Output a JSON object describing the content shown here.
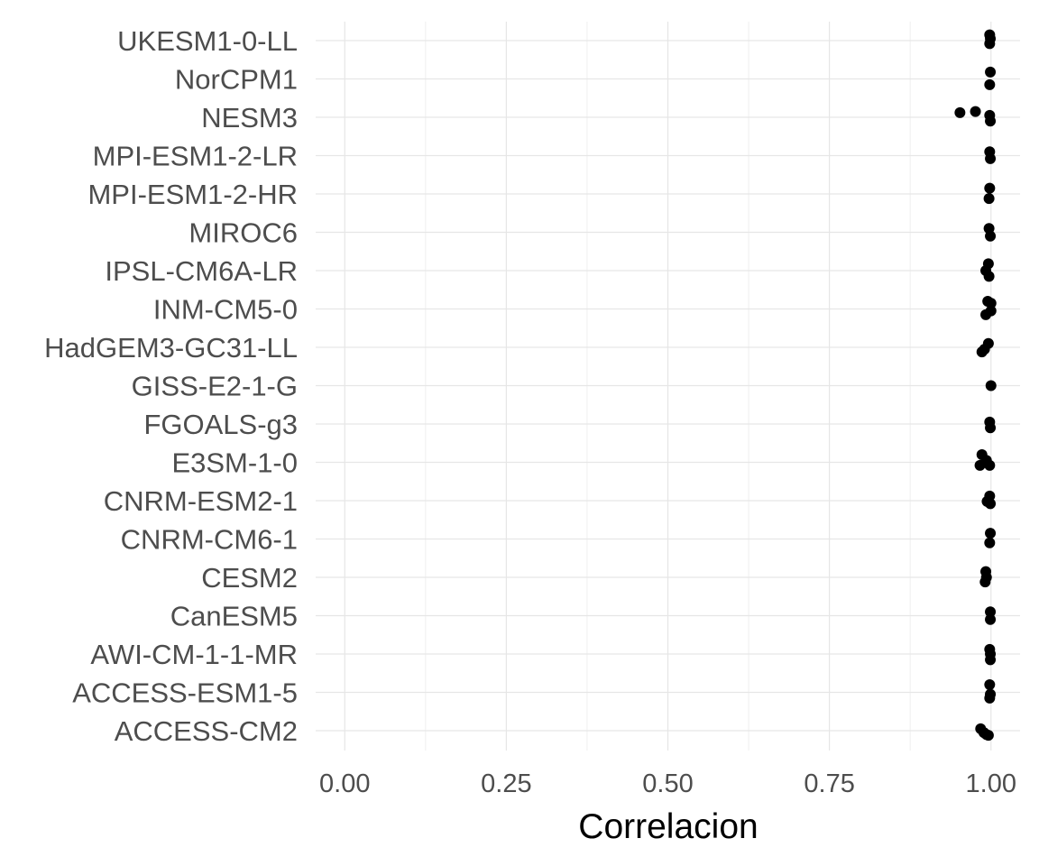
{
  "chart_data": {
    "type": "scatter",
    "title": "",
    "xlabel": "Correlacion",
    "ylabel": "",
    "xlim": [
      -0.045,
      1.045
    ],
    "x_ticks": [
      0.0,
      0.25,
      0.5,
      0.75,
      1.0
    ],
    "x_tick_labels": [
      "0.00",
      "0.25",
      "0.50",
      "0.75",
      "1.00"
    ],
    "grid": true,
    "legend": "none",
    "point_color": "#000000",
    "categories": [
      "ACCESS-CM2",
      "ACCESS-ESM1-5",
      "AWI-CM-1-1-MR",
      "CanESM5",
      "CESM2",
      "CNRM-CM6-1",
      "CNRM-ESM2-1",
      "E3SM-1-0",
      "FGOALS-g3",
      "GISS-E2-1-G",
      "HadGEM3-GC31-LL",
      "INM-CM5-0",
      "IPSL-CM6A-LR",
      "MIROC6",
      "MPI-ESM1-2-HR",
      "MPI-ESM1-2-LR",
      "NESM3",
      "NorCPM1",
      "UKESM1-0-LL"
    ],
    "points": [
      {
        "category": "ACCESS-CM2",
        "x": 0.984,
        "jitter": 0.05
      },
      {
        "category": "ACCESS-CM2",
        "x": 0.989,
        "jitter": -0.05
      },
      {
        "category": "ACCESS-CM2",
        "x": 0.993,
        "jitter": -0.1
      },
      {
        "category": "ACCESS-CM2",
        "x": 0.996,
        "jitter": -0.12
      },
      {
        "category": "ACCESS-ESM1-5",
        "x": 0.998,
        "jitter": 0.2
      },
      {
        "category": "ACCESS-ESM1-5",
        "x": 0.999,
        "jitter": -0.05
      },
      {
        "category": "ACCESS-ESM1-5",
        "x": 0.998,
        "jitter": -0.15
      },
      {
        "category": "AWI-CM-1-1-MR",
        "x": 0.998,
        "jitter": 0.12
      },
      {
        "category": "AWI-CM-1-1-MR",
        "x": 0.999,
        "jitter": 0.0
      },
      {
        "category": "AWI-CM-1-1-MR",
        "x": 0.999,
        "jitter": -0.15
      },
      {
        "category": "CanESM5",
        "x": 0.999,
        "jitter": 0.1
      },
      {
        "category": "CanESM5",
        "x": 0.999,
        "jitter": -0.1
      },
      {
        "category": "CESM2",
        "x": 0.992,
        "jitter": 0.15
      },
      {
        "category": "CESM2",
        "x": 0.993,
        "jitter": 0.0
      },
      {
        "category": "CESM2",
        "x": 0.991,
        "jitter": -0.12
      },
      {
        "category": "CNRM-CM6-1",
        "x": 0.999,
        "jitter": 0.15
      },
      {
        "category": "CNRM-CM6-1",
        "x": 0.998,
        "jitter": -0.1
      },
      {
        "category": "CNRM-ESM2-1",
        "x": 0.998,
        "jitter": 0.12
      },
      {
        "category": "CNRM-ESM2-1",
        "x": 0.994,
        "jitter": -0.02
      },
      {
        "category": "CNRM-ESM2-1",
        "x": 0.999,
        "jitter": -0.08
      },
      {
        "category": "E3SM-1-0",
        "x": 0.986,
        "jitter": 0.2
      },
      {
        "category": "E3SM-1-0",
        "x": 0.993,
        "jitter": 0.05
      },
      {
        "category": "E3SM-1-0",
        "x": 0.983,
        "jitter": -0.08
      },
      {
        "category": "E3SM-1-0",
        "x": 0.998,
        "jitter": -0.08
      },
      {
        "category": "FGOALS-g3",
        "x": 0.998,
        "jitter": 0.05
      },
      {
        "category": "FGOALS-g3",
        "x": 0.999,
        "jitter": -0.1
      },
      {
        "category": "GISS-E2-1-G",
        "x": 1.0,
        "jitter": 0.0
      },
      {
        "category": "HadGEM3-GC31-LL",
        "x": 0.996,
        "jitter": 0.1
      },
      {
        "category": "HadGEM3-GC31-LL",
        "x": 0.99,
        "jitter": -0.05
      },
      {
        "category": "HadGEM3-GC31-LL",
        "x": 0.986,
        "jitter": -0.12
      },
      {
        "category": "INM-CM5-0",
        "x": 0.995,
        "jitter": 0.2
      },
      {
        "category": "INM-CM5-0",
        "x": 1.0,
        "jitter": 0.15
      },
      {
        "category": "INM-CM5-0",
        "x": 1.0,
        "jitter": -0.05
      },
      {
        "category": "INM-CM5-0",
        "x": 0.992,
        "jitter": -0.15
      },
      {
        "category": "IPSL-CM6A-LR",
        "x": 0.996,
        "jitter": 0.18
      },
      {
        "category": "IPSL-CM6A-LR",
        "x": 0.992,
        "jitter": 0.0
      },
      {
        "category": "IPSL-CM6A-LR",
        "x": 0.997,
        "jitter": -0.15
      },
      {
        "category": "MIROC6",
        "x": 0.997,
        "jitter": 0.1
      },
      {
        "category": "MIROC6",
        "x": 0.999,
        "jitter": -0.1
      },
      {
        "category": "MPI-ESM1-2-HR",
        "x": 0.998,
        "jitter": 0.15
      },
      {
        "category": "MPI-ESM1-2-HR",
        "x": 0.997,
        "jitter": -0.12
      },
      {
        "category": "MPI-ESM1-2-LR",
        "x": 0.998,
        "jitter": 0.1
      },
      {
        "category": "MPI-ESM1-2-LR",
        "x": 0.999,
        "jitter": -0.08
      },
      {
        "category": "NESM3",
        "x": 0.952,
        "jitter": 0.12
      },
      {
        "category": "NESM3",
        "x": 0.976,
        "jitter": 0.15
      },
      {
        "category": "NESM3",
        "x": 0.998,
        "jitter": 0.05
      },
      {
        "category": "NESM3",
        "x": 0.999,
        "jitter": -0.1
      },
      {
        "category": "NorCPM1",
        "x": 0.999,
        "jitter": 0.18
      },
      {
        "category": "NorCPM1",
        "x": 0.998,
        "jitter": -0.15
      },
      {
        "category": "UKESM1-0-LL",
        "x": 0.998,
        "jitter": 0.15
      },
      {
        "category": "UKESM1-0-LL",
        "x": 0.999,
        "jitter": 0.05
      },
      {
        "category": "UKESM1-0-LL",
        "x": 0.998,
        "jitter": -0.08
      }
    ]
  }
}
